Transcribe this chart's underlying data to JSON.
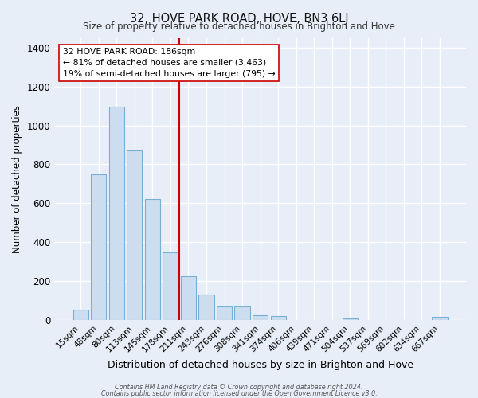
{
  "title": "32, HOVE PARK ROAD, HOVE, BN3 6LJ",
  "subtitle": "Size of property relative to detached houses in Brighton and Hove",
  "xlabel": "Distribution of detached houses by size in Brighton and Hove",
  "ylabel": "Number of detached properties",
  "bar_labels": [
    "15sqm",
    "48sqm",
    "80sqm",
    "113sqm",
    "145sqm",
    "178sqm",
    "211sqm",
    "243sqm",
    "276sqm",
    "308sqm",
    "341sqm",
    "374sqm",
    "406sqm",
    "439sqm",
    "471sqm",
    "504sqm",
    "537sqm",
    "569sqm",
    "602sqm",
    "634sqm",
    "667sqm"
  ],
  "bar_values": [
    55,
    750,
    1095,
    870,
    620,
    348,
    225,
    130,
    68,
    68,
    25,
    20,
    0,
    0,
    0,
    10,
    0,
    0,
    0,
    0,
    15
  ],
  "bar_color": "#ccddf0",
  "bar_edge_color": "#7aafd4",
  "vline_color": "#cc0000",
  "ylim": [
    0,
    1450
  ],
  "yticks": [
    0,
    200,
    400,
    600,
    800,
    1000,
    1200,
    1400
  ],
  "annotation_title": "32 HOVE PARK ROAD: 186sqm",
  "annotation_line1": "← 81% of detached houses are smaller (3,463)",
  "annotation_line2": "19% of semi-detached houses are larger (795) →",
  "footer1": "Contains HM Land Registry data © Crown copyright and database right 2024.",
  "footer2": "Contains public sector information licensed under the Open Government Licence v3.0.",
  "background_color": "#e8eef8",
  "plot_bg_color": "#e8eef8",
  "grid_color": "#ffffff",
  "vline_x": 5.5
}
